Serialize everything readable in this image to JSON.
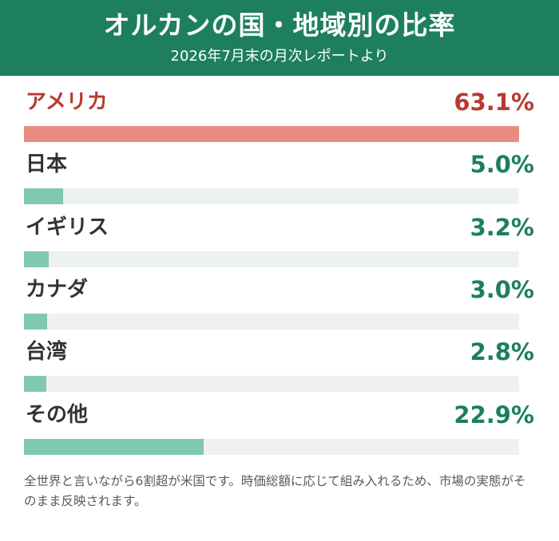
{
  "header": {
    "title": "オルカンの国・地域別の比率",
    "subtitle": "2026年7月末の月次レポートより"
  },
  "chart_data": {
    "type": "bar",
    "orientation": "horizontal",
    "title": "オルカンの国・地域別の比率",
    "subtitle": "2026年7月末の月次レポートより",
    "categories": [
      "アメリカ",
      "日本",
      "イギリス",
      "カナダ",
      "台湾",
      "その他"
    ],
    "values": [
      63.1,
      5.0,
      3.2,
      3.0,
      2.8,
      22.9
    ],
    "value_labels": [
      "63.1%",
      "5.0%",
      "3.2%",
      "3.0%",
      "2.8%",
      "22.9%"
    ],
    "unit": "%",
    "xlim": [
      0,
      63.1
    ],
    "grid": false,
    "highlight_index": 0
  },
  "note": "全世界と言いながら6割超が米国です。時価総額に応じて組み入れるため、市場の実態がそのまま反映されます。",
  "colors": {
    "header_bg": "#1d7f5f",
    "header_text": "#ffffff",
    "highlight_text": "#b83a2e",
    "highlight_bar": "#e98c80",
    "default_text": "#2f3336",
    "default_value": "#1d7f5f",
    "default_bar": "#80c9b1",
    "track": "#edf1ef",
    "note_text": "#555b5e"
  }
}
